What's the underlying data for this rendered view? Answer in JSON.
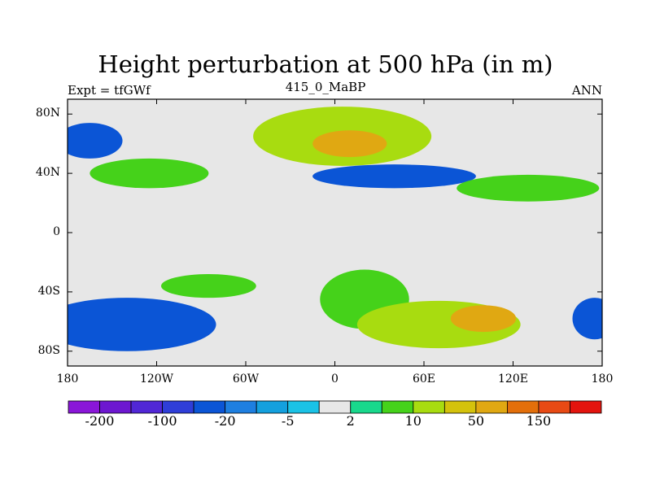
{
  "header": {
    "title": "Height perturbation at 500 hPa (in m)",
    "left_label": "Expt = tfGWf",
    "center_label": "415_0_MaBP",
    "right_label": "ANN"
  },
  "chart_data": {
    "type": "heatmap",
    "title": "Height perturbation at 500 hPa (in m)",
    "x_range": [
      -180,
      180
    ],
    "y_range": [
      -90,
      90
    ],
    "x_ticks": [
      {
        "value": -180,
        "label": "180"
      },
      {
        "value": -120,
        "label": "120W"
      },
      {
        "value": -60,
        "label": "60W"
      },
      {
        "value": 0,
        "label": "0"
      },
      {
        "value": 60,
        "label": "60E"
      },
      {
        "value": 120,
        "label": "120E"
      },
      {
        "value": 180,
        "label": "180"
      }
    ],
    "y_ticks": [
      {
        "value": 80,
        "label": "80N"
      },
      {
        "value": 40,
        "label": "40N"
      },
      {
        "value": 0,
        "label": "0"
      },
      {
        "value": -40,
        "label": "40S"
      },
      {
        "value": -80,
        "label": "80S"
      }
    ],
    "colorbar": {
      "colors": [
        "#8a16d8",
        "#6d17d0",
        "#5127d6",
        "#2f3ed8",
        "#0b55d6",
        "#1e7fe0",
        "#14a0de",
        "#1ac2e6",
        "#e7e7e7",
        "#19d88c",
        "#45d21a",
        "#a8dc10",
        "#d4c20c",
        "#e0a812",
        "#e36f0a",
        "#e84a14",
        "#e3140e"
      ],
      "tick_labels": [
        "-200",
        "-100",
        "-20",
        "-5",
        "2",
        "10",
        "50",
        "150"
      ],
      "tick_boundaries": [
        1,
        3,
        5,
        7,
        9,
        11,
        13,
        15
      ]
    },
    "regions": [
      {
        "name": "north-pacific-low",
        "lon": -165,
        "lat": 62,
        "rx": 22,
        "ry": 12,
        "bin": 4
      },
      {
        "name": "north-america-high",
        "lon": -125,
        "lat": 40,
        "rx": 40,
        "ry": 10,
        "bin": 10
      },
      {
        "name": "atlantic-europe-ridge",
        "lon": 5,
        "lat": 65,
        "rx": 60,
        "ry": 20,
        "bin": 11
      },
      {
        "name": "eurasia-high-core",
        "lon": 10,
        "lat": 60,
        "rx": 25,
        "ry": 9,
        "bin": 13
      },
      {
        "name": "asia-low-band",
        "lon": 40,
        "lat": 38,
        "rx": 55,
        "ry": 8,
        "bin": 4
      },
      {
        "name": "north-pacific-high",
        "lon": 130,
        "lat": 30,
        "rx": 48,
        "ry": 9,
        "bin": 10
      },
      {
        "name": "southern-ocean-low-west",
        "lon": -140,
        "lat": -62,
        "rx": 60,
        "ry": 18,
        "bin": 4
      },
      {
        "name": "south-pacific-high",
        "lon": -85,
        "lat": -36,
        "rx": 32,
        "ry": 8,
        "bin": 10
      },
      {
        "name": "south-atlantic-high",
        "lon": 20,
        "lat": -45,
        "rx": 30,
        "ry": 20,
        "bin": 10
      },
      {
        "name": "indian-ocean-high",
        "lon": 70,
        "lat": -62,
        "rx": 55,
        "ry": 16,
        "bin": 11
      },
      {
        "name": "indian-ocean-high-core",
        "lon": 100,
        "lat": -58,
        "rx": 22,
        "ry": 9,
        "bin": 13
      },
      {
        "name": "south-pacific-low-east",
        "lon": 175,
        "lat": -58,
        "rx": 15,
        "ry": 14,
        "bin": 4
      }
    ]
  }
}
